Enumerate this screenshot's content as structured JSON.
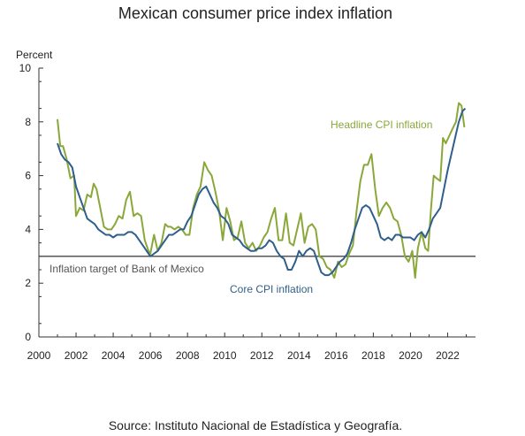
{
  "chart_data": {
    "type": "line",
    "title": "Mexican consumer price index inflation",
    "ylabel": "Percent",
    "xlabel": "",
    "xlim": [
      2000,
      2023.5
    ],
    "ylim": [
      0,
      10
    ],
    "x_ticks": [
      2000,
      2002,
      2004,
      2006,
      2008,
      2010,
      2012,
      2014,
      2016,
      2018,
      2020,
      2022
    ],
    "y_ticks": [
      0,
      2,
      4,
      6,
      8,
      10
    ],
    "grid": false,
    "legend": "inline labels",
    "reference_line": {
      "value": 3,
      "label": "Inflation target of Bank of Mexico",
      "color": "#444444"
    },
    "series": [
      {
        "name": "Headline CPI inflation",
        "color": "#8aa83a",
        "points": [
          [
            2001.0,
            8.1
          ],
          [
            2001.15,
            7.1
          ],
          [
            2001.3,
            7.1
          ],
          [
            2001.5,
            6.6
          ],
          [
            2001.7,
            5.9
          ],
          [
            2001.9,
            6.0
          ],
          [
            2002.0,
            4.5
          ],
          [
            2002.2,
            4.8
          ],
          [
            2002.4,
            4.7
          ],
          [
            2002.6,
            5.3
          ],
          [
            2002.8,
            5.2
          ],
          [
            2002.95,
            5.7
          ],
          [
            2003.1,
            5.5
          ],
          [
            2003.3,
            4.8
          ],
          [
            2003.5,
            4.1
          ],
          [
            2003.7,
            4.0
          ],
          [
            2003.9,
            4.0
          ],
          [
            2004.1,
            4.2
          ],
          [
            2004.3,
            4.5
          ],
          [
            2004.5,
            4.4
          ],
          [
            2004.7,
            5.1
          ],
          [
            2004.9,
            5.4
          ],
          [
            2005.1,
            4.5
          ],
          [
            2005.3,
            4.6
          ],
          [
            2005.5,
            4.5
          ],
          [
            2005.7,
            3.6
          ],
          [
            2005.9,
            3.2
          ],
          [
            2006.0,
            3.1
          ],
          [
            2006.2,
            3.8
          ],
          [
            2006.4,
            3.2
          ],
          [
            2006.6,
            3.5
          ],
          [
            2006.8,
            4.2
          ],
          [
            2006.95,
            4.1
          ],
          [
            2007.1,
            4.1
          ],
          [
            2007.3,
            4.0
          ],
          [
            2007.5,
            4.1
          ],
          [
            2007.7,
            4.0
          ],
          [
            2007.9,
            3.8
          ],
          [
            2008.1,
            3.8
          ],
          [
            2008.3,
            4.8
          ],
          [
            2008.5,
            5.3
          ],
          [
            2008.7,
            5.6
          ],
          [
            2008.9,
            6.5
          ],
          [
            2009.1,
            6.2
          ],
          [
            2009.3,
            6.0
          ],
          [
            2009.5,
            5.4
          ],
          [
            2009.7,
            4.7
          ],
          [
            2009.9,
            3.6
          ],
          [
            2010.1,
            4.8
          ],
          [
            2010.3,
            4.3
          ],
          [
            2010.5,
            3.6
          ],
          [
            2010.7,
            3.7
          ],
          [
            2010.9,
            4.3
          ],
          [
            2011.1,
            3.5
          ],
          [
            2011.3,
            3.3
          ],
          [
            2011.5,
            3.5
          ],
          [
            2011.7,
            3.2
          ],
          [
            2011.9,
            3.4
          ],
          [
            2012.1,
            3.7
          ],
          [
            2012.3,
            3.9
          ],
          [
            2012.5,
            4.4
          ],
          [
            2012.7,
            4.8
          ],
          [
            2012.9,
            3.6
          ],
          [
            2013.1,
            3.6
          ],
          [
            2013.3,
            4.6
          ],
          [
            2013.5,
            3.5
          ],
          [
            2013.7,
            3.4
          ],
          [
            2013.9,
            4.0
          ],
          [
            2014.1,
            4.6
          ],
          [
            2014.3,
            3.5
          ],
          [
            2014.5,
            4.1
          ],
          [
            2014.7,
            4.2
          ],
          [
            2014.9,
            4.0
          ],
          [
            2015.1,
            3.0
          ],
          [
            2015.3,
            2.9
          ],
          [
            2015.5,
            2.6
          ],
          [
            2015.7,
            2.5
          ],
          [
            2015.9,
            2.2
          ],
          [
            2016.1,
            2.8
          ],
          [
            2016.3,
            2.6
          ],
          [
            2016.5,
            2.7
          ],
          [
            2016.7,
            3.1
          ],
          [
            2016.9,
            3.4
          ],
          [
            2017.1,
            4.7
          ],
          [
            2017.3,
            5.8
          ],
          [
            2017.5,
            6.4
          ],
          [
            2017.7,
            6.4
          ],
          [
            2017.9,
            6.8
          ],
          [
            2018.1,
            5.5
          ],
          [
            2018.3,
            4.5
          ],
          [
            2018.5,
            4.8
          ],
          [
            2018.7,
            5.0
          ],
          [
            2018.9,
            4.8
          ],
          [
            2019.1,
            4.4
          ],
          [
            2019.3,
            4.3
          ],
          [
            2019.5,
            3.8
          ],
          [
            2019.7,
            3.0
          ],
          [
            2019.9,
            2.8
          ],
          [
            2020.1,
            3.2
          ],
          [
            2020.25,
            2.2
          ],
          [
            2020.4,
            3.3
          ],
          [
            2020.6,
            3.9
          ],
          [
            2020.8,
            3.3
          ],
          [
            2020.95,
            3.2
          ],
          [
            2021.1,
            4.7
          ],
          [
            2021.25,
            6.0
          ],
          [
            2021.4,
            5.9
          ],
          [
            2021.6,
            5.8
          ],
          [
            2021.75,
            7.4
          ],
          [
            2021.9,
            7.2
          ],
          [
            2022.1,
            7.5
          ],
          [
            2022.3,
            7.8
          ],
          [
            2022.45,
            8.0
          ],
          [
            2022.6,
            8.7
          ],
          [
            2022.75,
            8.6
          ],
          [
            2022.9,
            7.8
          ]
        ]
      },
      {
        "name": "Core CPI inflation",
        "color": "#2f5f8a",
        "points": [
          [
            2001.0,
            7.2
          ],
          [
            2001.2,
            6.8
          ],
          [
            2001.4,
            6.6
          ],
          [
            2001.6,
            6.5
          ],
          [
            2001.8,
            6.3
          ],
          [
            2002.0,
            5.6
          ],
          [
            2002.2,
            5.2
          ],
          [
            2002.4,
            4.8
          ],
          [
            2002.6,
            4.4
          ],
          [
            2002.8,
            4.3
          ],
          [
            2003.0,
            4.2
          ],
          [
            2003.2,
            4.0
          ],
          [
            2003.4,
            3.9
          ],
          [
            2003.6,
            3.8
          ],
          [
            2003.8,
            3.8
          ],
          [
            2004.0,
            3.7
          ],
          [
            2004.2,
            3.8
          ],
          [
            2004.4,
            3.8
          ],
          [
            2004.6,
            3.8
          ],
          [
            2004.8,
            3.9
          ],
          [
            2005.0,
            3.9
          ],
          [
            2005.2,
            3.8
          ],
          [
            2005.4,
            3.6
          ],
          [
            2005.6,
            3.4
          ],
          [
            2005.8,
            3.2
          ],
          [
            2006.0,
            3.0
          ],
          [
            2006.2,
            3.1
          ],
          [
            2006.4,
            3.2
          ],
          [
            2006.6,
            3.4
          ],
          [
            2006.8,
            3.6
          ],
          [
            2007.0,
            3.8
          ],
          [
            2007.2,
            3.8
          ],
          [
            2007.4,
            3.9
          ],
          [
            2007.6,
            4.0
          ],
          [
            2007.8,
            4.0
          ],
          [
            2008.0,
            4.3
          ],
          [
            2008.2,
            4.5
          ],
          [
            2008.4,
            4.9
          ],
          [
            2008.6,
            5.3
          ],
          [
            2008.8,
            5.5
          ],
          [
            2009.0,
            5.6
          ],
          [
            2009.2,
            5.3
          ],
          [
            2009.4,
            5.0
          ],
          [
            2009.6,
            4.8
          ],
          [
            2009.8,
            4.5
          ],
          [
            2010.0,
            4.4
          ],
          [
            2010.2,
            4.2
          ],
          [
            2010.4,
            3.8
          ],
          [
            2010.6,
            3.7
          ],
          [
            2010.8,
            3.6
          ],
          [
            2011.0,
            3.4
          ],
          [
            2011.2,
            3.3
          ],
          [
            2011.4,
            3.2
          ],
          [
            2011.6,
            3.2
          ],
          [
            2011.8,
            3.3
          ],
          [
            2012.0,
            3.3
          ],
          [
            2012.2,
            3.4
          ],
          [
            2012.4,
            3.6
          ],
          [
            2012.6,
            3.5
          ],
          [
            2012.8,
            3.2
          ],
          [
            2013.0,
            3.0
          ],
          [
            2013.2,
            2.9
          ],
          [
            2013.4,
            2.5
          ],
          [
            2013.6,
            2.5
          ],
          [
            2013.8,
            2.8
          ],
          [
            2014.0,
            3.2
          ],
          [
            2014.2,
            3.0
          ],
          [
            2014.4,
            3.2
          ],
          [
            2014.6,
            3.3
          ],
          [
            2014.8,
            3.2
          ],
          [
            2015.0,
            2.8
          ],
          [
            2015.2,
            2.4
          ],
          [
            2015.4,
            2.3
          ],
          [
            2015.6,
            2.3
          ],
          [
            2015.8,
            2.4
          ],
          [
            2016.0,
            2.6
          ],
          [
            2016.2,
            2.8
          ],
          [
            2016.4,
            2.9
          ],
          [
            2016.6,
            3.1
          ],
          [
            2016.8,
            3.5
          ],
          [
            2017.0,
            4.0
          ],
          [
            2017.2,
            4.4
          ],
          [
            2017.4,
            4.8
          ],
          [
            2017.6,
            4.9
          ],
          [
            2017.8,
            4.8
          ],
          [
            2018.0,
            4.5
          ],
          [
            2018.2,
            4.2
          ],
          [
            2018.4,
            3.7
          ],
          [
            2018.6,
            3.6
          ],
          [
            2018.8,
            3.7
          ],
          [
            2019.0,
            3.6
          ],
          [
            2019.2,
            3.8
          ],
          [
            2019.4,
            3.8
          ],
          [
            2019.6,
            3.7
          ],
          [
            2019.8,
            3.7
          ],
          [
            2020.0,
            3.7
          ],
          [
            2020.2,
            3.6
          ],
          [
            2020.4,
            3.8
          ],
          [
            2020.6,
            3.9
          ],
          [
            2020.8,
            3.7
          ],
          [
            2021.0,
            4.0
          ],
          [
            2021.2,
            4.4
          ],
          [
            2021.4,
            4.6
          ],
          [
            2021.6,
            4.8
          ],
          [
            2021.8,
            5.5
          ],
          [
            2022.0,
            6.2
          ],
          [
            2022.2,
            6.8
          ],
          [
            2022.4,
            7.4
          ],
          [
            2022.6,
            8.0
          ],
          [
            2022.8,
            8.4
          ],
          [
            2022.95,
            8.5
          ]
        ]
      }
    ],
    "annotations": [
      {
        "text": "Headline CPI inflation",
        "color": "#8aa83a"
      },
      {
        "text": "Core CPI inflation",
        "color": "#2f5f8a"
      }
    ],
    "source": "Source: Instituto Nacional de Estadística y Geografía."
  }
}
